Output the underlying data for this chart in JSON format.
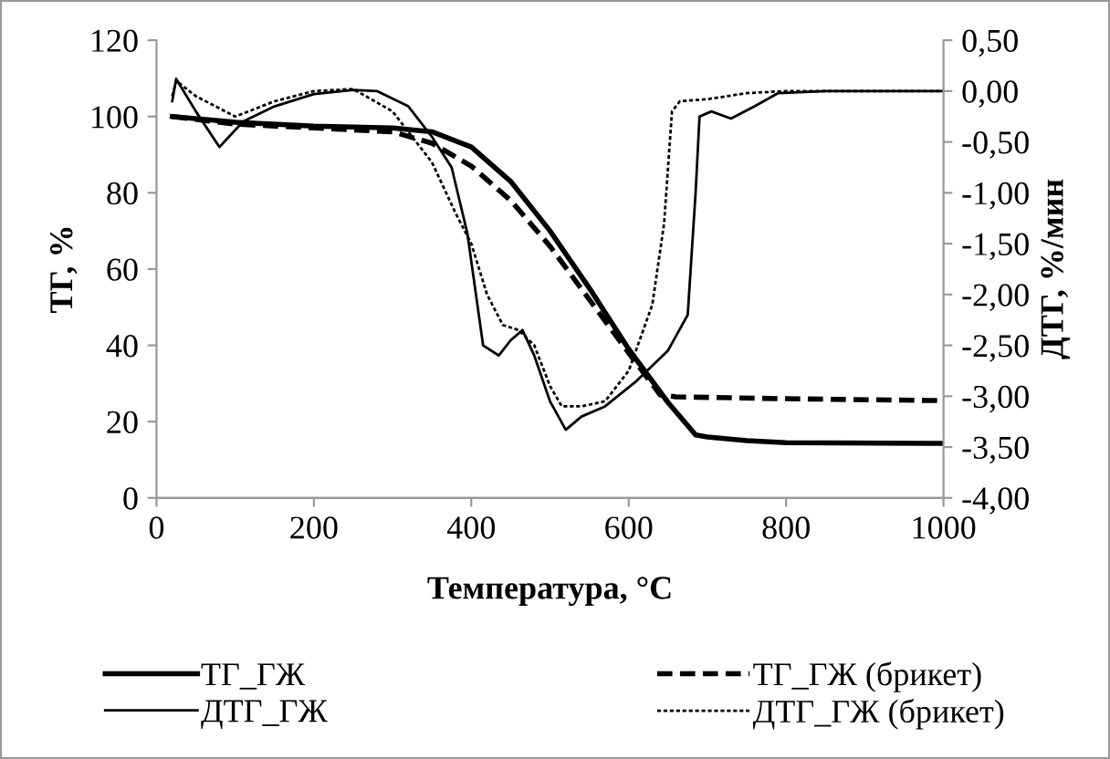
{
  "chart_data": {
    "type": "line",
    "xlabel": "Температура, °C",
    "ylabel": "ТГ, %",
    "y2label": "ДТГ, %/мин",
    "xlim": [
      0,
      1000
    ],
    "xticks": [
      0,
      200,
      400,
      600,
      800,
      1000
    ],
    "ylim": [
      0,
      120
    ],
    "yticks": [
      0,
      20,
      40,
      60,
      80,
      100,
      120
    ],
    "y2lim": [
      -4,
      0.5
    ],
    "y2ticks": [
      {
        "value": -4,
        "label": "-4,00"
      },
      {
        "value": -3.5,
        "label": "-3,50"
      },
      {
        "value": -3,
        "label": "-3,00"
      },
      {
        "value": -2.5,
        "label": "-2,50"
      },
      {
        "value": -2,
        "label": "-2,00"
      },
      {
        "value": -1.5,
        "label": "-1,50"
      },
      {
        "value": -1,
        "label": "-1,00"
      },
      {
        "value": -0.5,
        "label": "-0,50"
      },
      {
        "value": 0,
        "label": "0,00"
      },
      {
        "value": 0.5,
        "label": "0,50"
      }
    ],
    "grid": false,
    "legend": "bottom",
    "marker": "none",
    "series": [
      {
        "name": "ТГ_ГЖ",
        "color": "#000000",
        "line_style": "solid",
        "x": [
          20,
          100,
          200,
          300,
          350,
          400,
          450,
          500,
          550,
          600,
          650,
          685,
          700,
          750,
          800,
          1000
        ],
        "values": [
          100,
          98.5,
          97.5,
          97,
          96,
          92,
          83,
          70,
          55,
          39,
          25,
          16.5,
          16,
          15,
          14.5,
          14.3
        ]
      },
      {
        "name": "ДТГ_ГЖ",
        "color": "#000000",
        "line_style": "solid",
        "axis": "y2",
        "x": [
          20,
          25,
          50,
          80,
          110,
          150,
          200,
          250,
          280,
          320,
          350,
          375,
          395,
          415,
          435,
          450,
          465,
          480,
          500,
          520,
          540,
          570,
          610,
          650,
          675,
          685,
          690,
          705,
          730,
          760,
          790,
          850,
          1000
        ],
        "values": [
          -0.1,
          0.12,
          -0.2,
          -0.55,
          -0.3,
          -0.15,
          -0.03,
          0.01,
          0.0,
          -0.15,
          -0.45,
          -0.75,
          -1.4,
          -2.5,
          -2.6,
          -2.45,
          -2.35,
          -2.6,
          -3.05,
          -3.33,
          -3.2,
          -3.1,
          -2.85,
          -2.55,
          -2.2,
          -1.0,
          -0.25,
          -0.2,
          -0.27,
          -0.15,
          -0.02,
          0,
          0
        ]
      },
      {
        "name": "ТГ_ГЖ (брикет)",
        "color": "#000000",
        "line_style": "dashed",
        "x": [
          20,
          100,
          200,
          300,
          350,
          400,
          450,
          500,
          550,
          600,
          640,
          660,
          800,
          1000
        ],
        "values": [
          100,
          98,
          97,
          96,
          93,
          87,
          78,
          66,
          52,
          38,
          27,
          26.5,
          26,
          25.5
        ]
      },
      {
        "name": "ДТГ_ГЖ (брикет)",
        "color": "#000000",
        "line_style": "dotted",
        "axis": "y2",
        "x": [
          20,
          25,
          50,
          100,
          150,
          200,
          250,
          300,
          350,
          380,
          400,
          420,
          440,
          460,
          480,
          500,
          515,
          540,
          570,
          600,
          630,
          645,
          655,
          665,
          700,
          750,
          800,
          1000
        ],
        "values": [
          -0.05,
          0.1,
          -0.05,
          -0.25,
          -0.1,
          0.0,
          0.02,
          -0.2,
          -0.7,
          -1.2,
          -1.5,
          -2.0,
          -2.3,
          -2.35,
          -2.5,
          -2.9,
          -3.1,
          -3.1,
          -3.05,
          -2.75,
          -2.1,
          -1.3,
          -0.2,
          -0.1,
          -0.08,
          -0.02,
          0,
          0
        ]
      }
    ]
  }
}
